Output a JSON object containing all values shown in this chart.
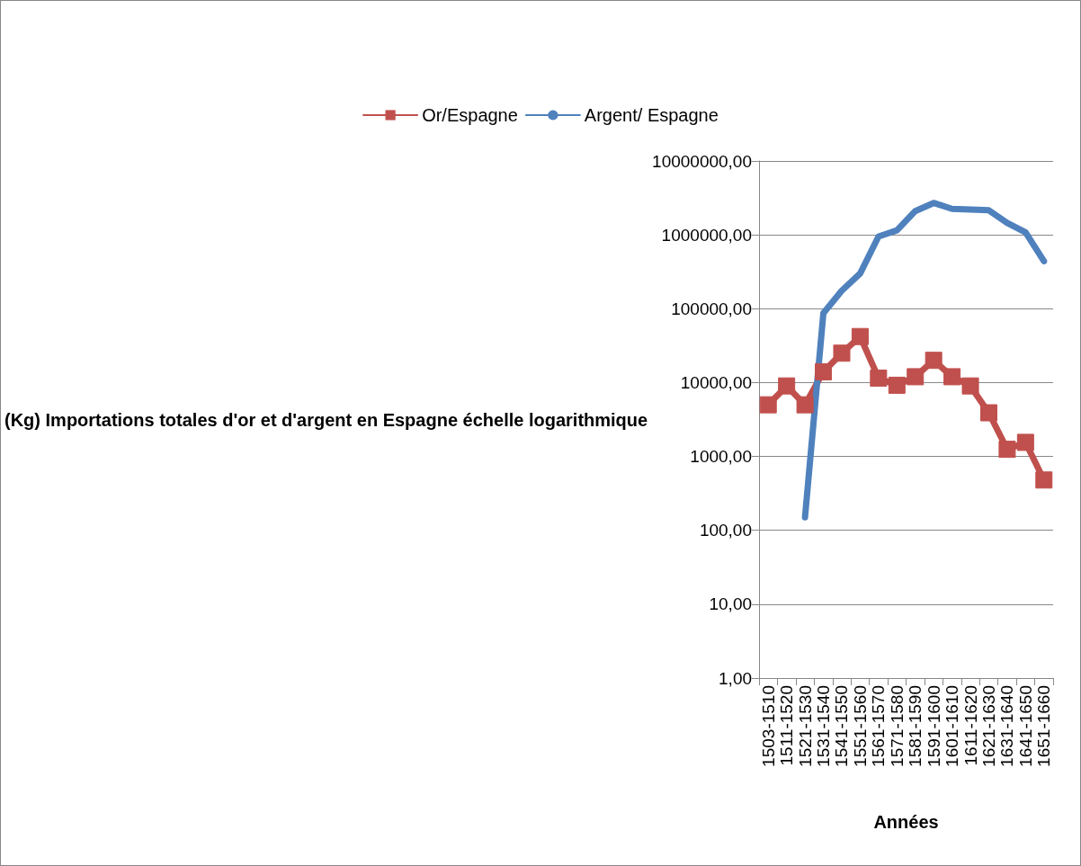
{
  "chart_data": {
    "type": "line",
    "xlabel": "Années",
    "ylabel": "(Kg) Importations totales d'or et d'argent en Espagne échelle logarithmique",
    "categories": [
      "1503-1510",
      "1511-1520",
      "1521-1530",
      "1531-1540",
      "1541-1550",
      "1551-1560",
      "1561-1570",
      "1571-1580",
      "1581-1590",
      "1591-1600",
      "1601-1610",
      "1611-1620",
      "1621-1630",
      "1631-1640",
      "1641-1650",
      "1651-1660"
    ],
    "series": [
      {
        "name": "Or/Espagne",
        "color": "#c0504d",
        "marker": "square",
        "values": [
          5000,
          9000,
          5000,
          14000,
          25000,
          42000,
          11500,
          9200,
          12000,
          20000,
          12000,
          9000,
          3900,
          1250,
          1550,
          480
        ]
      },
      {
        "name": "Argent/ Espagne",
        "color": "#4f81bd",
        "marker": "none",
        "values": [
          null,
          null,
          150,
          87000,
          175000,
          300000,
          950000,
          1150000,
          2100000,
          2700000,
          2250000,
          2200000,
          2150000,
          1450000,
          1080000,
          440000
        ]
      }
    ],
    "log": "y",
    "ylim": [
      1,
      10000000
    ],
    "yticks": [
      {
        "value": 1,
        "label": "1,00"
      },
      {
        "value": 10,
        "label": "10,00"
      },
      {
        "value": 100,
        "label": "100,00"
      },
      {
        "value": 1000,
        "label": "1000,00"
      },
      {
        "value": 10000,
        "label": "10000,00"
      },
      {
        "value": 100000,
        "label": "100000,00"
      },
      {
        "value": 1000000,
        "label": "1000000,00"
      },
      {
        "value": 10000000,
        "label": "10000000,00"
      }
    ],
    "grid": "y",
    "legend": "top",
    "line_style": "solid"
  }
}
